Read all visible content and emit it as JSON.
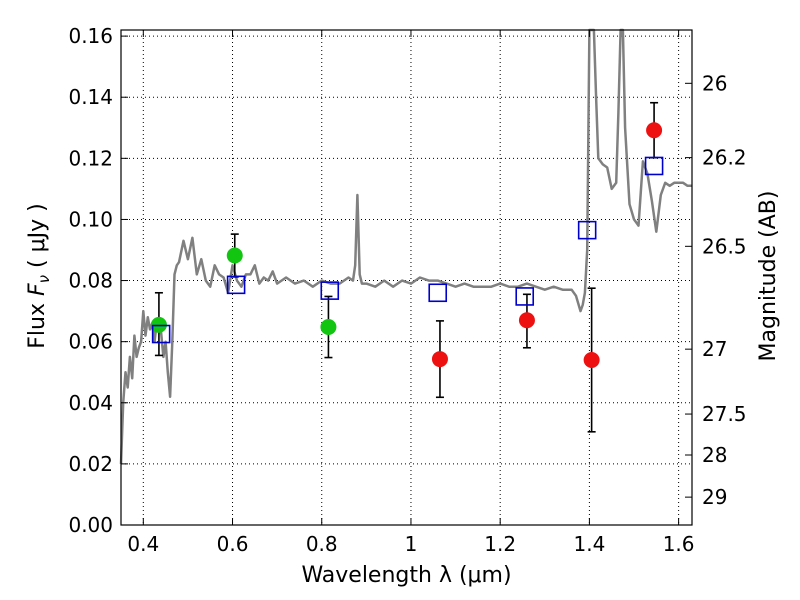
{
  "chart_data": {
    "type": "scatter",
    "xlabel": "Wavelength  λ (μm)",
    "ylabel": "Flux  F_ν  ( μJy )",
    "ylabel_parts": {
      "prefix": "Flux  ",
      "symbol": "F",
      "subscript": "ν",
      "suffix": "  ( μJy )"
    },
    "y2label": "Magnitude (AB)",
    "xlim": [
      0.35,
      1.63
    ],
    "ylim": [
      0.0,
      0.162
    ],
    "grid": true,
    "x_ticks": [
      0.4,
      0.6,
      0.8,
      1.0,
      1.2,
      1.4,
      1.6
    ],
    "x_tick_labels": [
      "0.4",
      "0.6",
      "0.8",
      "1",
      "1.2",
      "1.4",
      "1.6"
    ],
    "y_ticks": [
      0.0,
      0.02,
      0.04,
      0.06,
      0.08,
      0.1,
      0.12,
      0.14,
      0.16
    ],
    "y_tick_labels": [
      "0.00",
      "0.02",
      "0.04",
      "0.06",
      "0.08",
      "0.10",
      "0.12",
      "0.14",
      "0.16"
    ],
    "mag_ticks": [
      26,
      26.2,
      26.5,
      27,
      27.5,
      28,
      29
    ],
    "mag_tick_labels": [
      "26",
      "26.2",
      "26.5",
      "27",
      "27.5",
      "28",
      "29"
    ],
    "colors": {
      "green": "#11c511",
      "red": "#ee1111",
      "model": "#0000cc",
      "spectrum": "#808080",
      "errorbar": "#000000"
    },
    "series": [
      {
        "marker": "circle",
        "color_key": "green",
        "points": [
          {
            "x": 0.435,
            "y": 0.0655,
            "err_lo": 0.01,
            "err_hi": 0.0105
          },
          {
            "x": 0.605,
            "y": 0.0882,
            "err_lo": 0.007,
            "err_hi": 0.007
          },
          {
            "x": 0.815,
            "y": 0.0648,
            "err_lo": 0.01,
            "err_hi": 0.01
          }
        ]
      },
      {
        "marker": "circle",
        "color_key": "red",
        "points": [
          {
            "x": 1.065,
            "y": 0.0543,
            "err_lo": 0.0125,
            "err_hi": 0.0125
          },
          {
            "x": 1.26,
            "y": 0.067,
            "err_lo": 0.009,
            "err_hi": 0.0085
          },
          {
            "x": 1.405,
            "y": 0.054,
            "err_lo": 0.0235,
            "err_hi": 0.0235
          },
          {
            "x": 1.545,
            "y": 0.1292,
            "err_lo": 0.009,
            "err_hi": 0.009
          }
        ]
      },
      {
        "marker": "open-square",
        "color_key": "model",
        "points": [
          {
            "x": 0.44,
            "y": 0.0625
          },
          {
            "x": 0.608,
            "y": 0.0786
          },
          {
            "x": 0.818,
            "y": 0.0767
          },
          {
            "x": 1.06,
            "y": 0.076
          },
          {
            "x": 1.255,
            "y": 0.0748
          },
          {
            "x": 1.395,
            "y": 0.0965
          },
          {
            "x": 1.545,
            "y": 0.1175
          }
        ]
      }
    ],
    "spectrum": {
      "color_key": "spectrum",
      "x": [
        0.35,
        0.355,
        0.36,
        0.365,
        0.37,
        0.375,
        0.38,
        0.385,
        0.39,
        0.395,
        0.4,
        0.405,
        0.41,
        0.415,
        0.42,
        0.425,
        0.43,
        0.435,
        0.44,
        0.445,
        0.45,
        0.455,
        0.46,
        0.465,
        0.47,
        0.475,
        0.48,
        0.49,
        0.5,
        0.51,
        0.52,
        0.53,
        0.54,
        0.55,
        0.56,
        0.57,
        0.58,
        0.59,
        0.6,
        0.61,
        0.62,
        0.63,
        0.64,
        0.65,
        0.66,
        0.67,
        0.68,
        0.69,
        0.7,
        0.72,
        0.74,
        0.76,
        0.78,
        0.8,
        0.82,
        0.84,
        0.86,
        0.87,
        0.875,
        0.88,
        0.885,
        0.89,
        0.9,
        0.92,
        0.94,
        0.96,
        0.98,
        1.0,
        1.02,
        1.04,
        1.06,
        1.08,
        1.1,
        1.12,
        1.14,
        1.16,
        1.18,
        1.2,
        1.22,
        1.24,
        1.26,
        1.28,
        1.3,
        1.32,
        1.34,
        1.36,
        1.37,
        1.38,
        1.385,
        1.39,
        1.395,
        1.4,
        1.405,
        1.41,
        1.415,
        1.42,
        1.43,
        1.44,
        1.45,
        1.46,
        1.465,
        1.47,
        1.475,
        1.48,
        1.49,
        1.5,
        1.51,
        1.52,
        1.53,
        1.54,
        1.55,
        1.56,
        1.57,
        1.58,
        1.59,
        1.6,
        1.61,
        1.62,
        1.63
      ],
      "y": [
        0.02,
        0.04,
        0.05,
        0.045,
        0.055,
        0.048,
        0.062,
        0.055,
        0.058,
        0.06,
        0.07,
        0.062,
        0.068,
        0.064,
        0.066,
        0.06,
        0.066,
        0.064,
        0.063,
        0.055,
        0.06,
        0.05,
        0.042,
        0.06,
        0.082,
        0.085,
        0.086,
        0.093,
        0.087,
        0.094,
        0.082,
        0.087,
        0.08,
        0.078,
        0.085,
        0.082,
        0.081,
        0.076,
        0.085,
        0.08,
        0.078,
        0.082,
        0.082,
        0.085,
        0.079,
        0.081,
        0.08,
        0.083,
        0.079,
        0.081,
        0.079,
        0.08,
        0.078,
        0.08,
        0.079,
        0.079,
        0.081,
        0.08,
        0.085,
        0.108,
        0.082,
        0.079,
        0.079,
        0.078,
        0.08,
        0.078,
        0.08,
        0.079,
        0.081,
        0.08,
        0.08,
        0.079,
        0.078,
        0.079,
        0.078,
        0.078,
        0.078,
        0.079,
        0.078,
        0.078,
        0.079,
        0.078,
        0.077,
        0.078,
        0.077,
        0.077,
        0.075,
        0.07,
        0.072,
        0.076,
        0.09,
        0.162,
        0.162,
        0.162,
        0.14,
        0.12,
        0.118,
        0.117,
        0.11,
        0.112,
        0.135,
        0.162,
        0.162,
        0.13,
        0.105,
        0.1,
        0.098,
        0.119,
        0.115,
        0.106,
        0.096,
        0.108,
        0.112,
        0.111,
        0.112,
        0.112,
        0.112,
        0.111,
        0.111
      ]
    }
  }
}
